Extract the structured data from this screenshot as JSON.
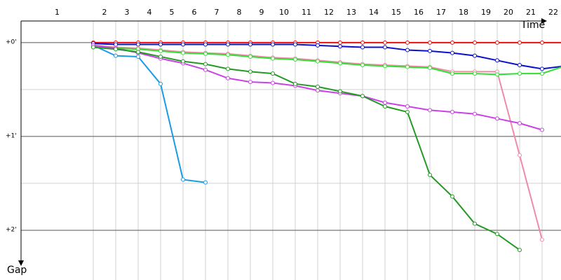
{
  "chart_data": {
    "type": "line",
    "x_label": "Time",
    "y_label": "Gap",
    "categories": [
      "1",
      "2",
      "3",
      "4",
      "5",
      "6",
      "7",
      "8",
      "9",
      "10",
      "11",
      "12",
      "13",
      "14",
      "15",
      "16",
      "17",
      "18",
      "19",
      "20",
      "21",
      "22"
    ],
    "ylim": [
      -0.23,
      2.53
    ],
    "yticks": [
      {
        "value": 0,
        "label": "+0'"
      },
      {
        "value": 1,
        "label": "+1'"
      },
      {
        "value": 2,
        "label": "+2'"
      }
    ],
    "grid": true,
    "series": [
      {
        "color": "#e81010",
        "values": [
          0,
          0,
          0,
          0,
          0,
          0,
          0,
          0,
          0,
          0,
          0,
          0,
          0,
          0,
          0,
          0,
          0,
          0,
          0,
          0,
          0,
          0
        ]
      },
      {
        "color": "#0a10d0",
        "values": [
          0.01,
          0.02,
          0.02,
          0.02,
          0.02,
          0.02,
          0.02,
          0.02,
          0.02,
          0.02,
          0.03,
          0.04,
          0.05,
          0.05,
          0.08,
          0.09,
          0.11,
          0.14,
          0.19,
          0.24,
          0.28,
          0.25
        ]
      },
      {
        "color": "#1a9be8",
        "values": [
          0.03,
          0.14,
          0.15,
          0.44,
          1.46,
          1.49,
          null,
          null,
          null,
          null,
          null,
          null,
          null,
          null,
          null,
          null,
          null,
          null,
          null,
          null,
          null,
          null
        ]
      },
      {
        "color": "#f08aa8",
        "values": [
          0.03,
          0.05,
          0.06,
          0.08,
          0.1,
          0.11,
          0.12,
          0.14,
          0.16,
          0.17,
          0.19,
          0.21,
          0.23,
          0.24,
          0.25,
          0.26,
          0.31,
          0.31,
          0.31,
          1.2,
          2.1,
          null
        ]
      },
      {
        "color": "#30e030",
        "values": [
          0.05,
          0.06,
          0.07,
          0.09,
          0.11,
          0.12,
          0.13,
          0.15,
          0.17,
          0.18,
          0.2,
          0.22,
          0.24,
          0.25,
          0.26,
          0.27,
          0.33,
          0.33,
          0.34,
          0.33,
          0.33,
          0.25
        ]
      },
      {
        "color": "#cc40e8",
        "values": [
          0.03,
          0.06,
          0.11,
          0.17,
          0.22,
          0.29,
          0.38,
          0.42,
          0.43,
          0.46,
          0.51,
          0.54,
          0.57,
          0.64,
          0.68,
          0.72,
          0.74,
          0.76,
          0.81,
          0.86,
          0.93,
          null
        ]
      },
      {
        "color": "#239a23",
        "values": [
          0.05,
          0.07,
          0.1,
          0.15,
          0.2,
          0.23,
          0.28,
          0.31,
          0.33,
          0.44,
          0.47,
          0.52,
          0.57,
          0.68,
          0.74,
          1.41,
          1.64,
          1.93,
          2.04,
          2.21,
          null,
          null
        ]
      }
    ]
  }
}
